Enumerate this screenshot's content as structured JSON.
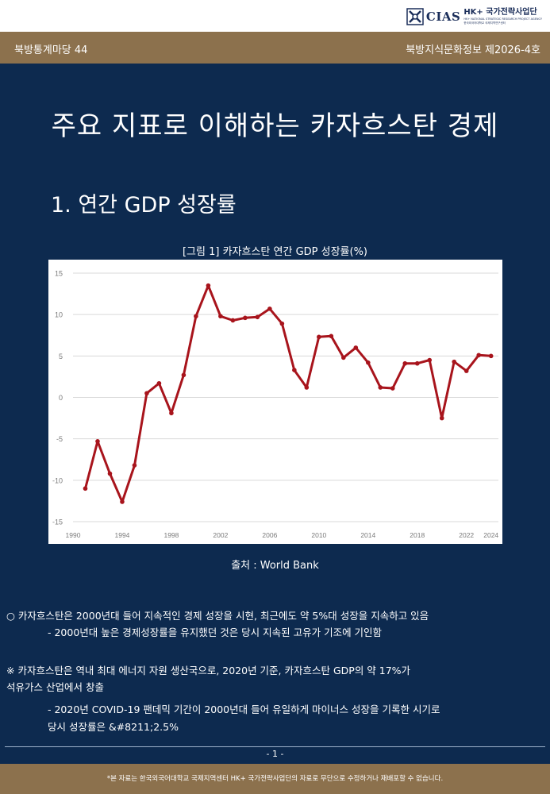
{
  "logo": {
    "cias": "CIAS",
    "hk": "HK+ 국가전략사업단",
    "sub_en": "HK+ NATIONAL STRATEGIC RESEARCH PROJECT AGENCY",
    "sub_kr": "한국외국어대학교 국제지역연구센터"
  },
  "header": {
    "series": "북방통계마당 44",
    "issue": "북방지식문화정보 제2026-4호"
  },
  "title": "주요 지표로 이해하는 카자흐스탄 경제",
  "section": "1. 연간 GDP 성장률",
  "figure_caption": "[그림 1] 카자흐스탄 연간 GDP 성장률(%)",
  "chart_data": {
    "type": "line",
    "title": "",
    "xlabel": "",
    "ylabel": "",
    "x": [
      1991,
      1992,
      1993,
      1994,
      1995,
      1996,
      1997,
      1998,
      1999,
      2000,
      2001,
      2002,
      2003,
      2004,
      2005,
      2006,
      2007,
      2008,
      2009,
      2010,
      2011,
      2012,
      2013,
      2014,
      2015,
      2016,
      2017,
      2018,
      2019,
      2020,
      2021,
      2022,
      2023,
      2024
    ],
    "series": [
      {
        "values": [
          -11.0,
          -5.3,
          -9.2,
          -12.6,
          -8.2,
          0.5,
          1.7,
          -1.9,
          2.7,
          9.8,
          13.5,
          9.8,
          9.3,
          9.6,
          9.7,
          10.7,
          8.9,
          3.3,
          1.2,
          7.3,
          7.4,
          4.8,
          6.0,
          4.2,
          1.2,
          1.1,
          4.1,
          4.1,
          4.5,
          -2.5,
          4.3,
          3.2,
          5.1,
          5.0
        ]
      }
    ],
    "xticks": [
      1990,
      1994,
      1998,
      2002,
      2006,
      2010,
      2014,
      2018,
      2022,
      2024
    ],
    "yticks": [
      -15,
      -10,
      -5,
      0,
      5,
      10,
      15
    ],
    "xlim": [
      1990,
      2024.6
    ],
    "ylim": [
      -15,
      15
    ],
    "grid": "horizontal",
    "line_color": "#a8141c"
  },
  "source": "출처 : World Bank",
  "bullets": {
    "b1": "○ 카자흐스탄은 2000년대 들어 지속적인 경제 성장을 시현, 최근에도 약 5%대 성장을 지속하고 있음",
    "b1_sub": "- 2000년대 높은 경제성장률을 유지했던 것은 당시 지속된 고유가 기조에 기인함",
    "b2": "※ 카자흐스탄은 역내 최대 에너지 자원 생산국으로, 2020년 기준, 카자흐스탄 GDP의 약 17%가",
    "b2_cont": "석유가스 산업에서 창출",
    "b2_sub": "- 2020년 COVID-19 팬데믹 기간이 2000년대 들어 유일하게 마이너스 성장을 기록한 시기로",
    "b2_sub2": "당시 성장률은 &#8211;2.5%"
  },
  "page_number": "- 1 -",
  "footer": {
    "disclaimer": "*본 자료는 한국외국어대학교 국제지역센터 HK+ 국가전략사업단의 자료로 무단으로 수정하거나 재배포할 수 없습니다."
  },
  "colors": {
    "navy": "#0d2a4f",
    "tan": "#8c714d",
    "line": "#a8141c"
  }
}
